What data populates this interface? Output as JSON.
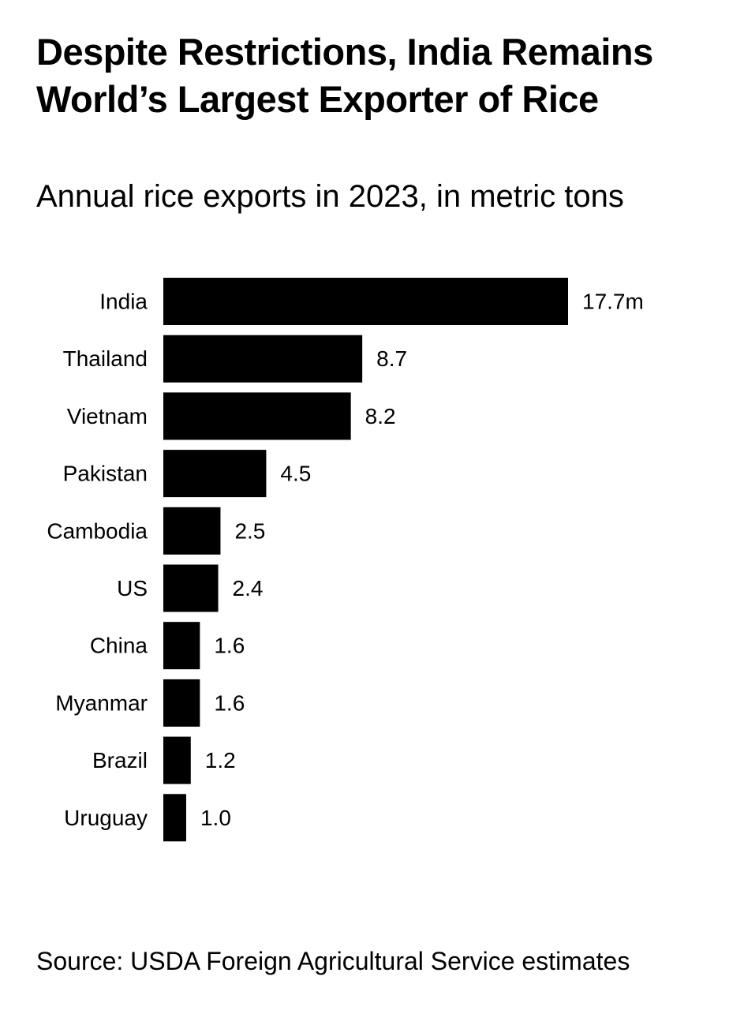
{
  "header": {
    "title": "Despite Restrictions, India Remains World’s Largest Exporter of Rice",
    "subtitle": "Annual rice exports in 2023, in metric tons"
  },
  "footer": {
    "source": "Source: USDA Foreign Agricultural Service estimates"
  },
  "colors": {
    "bar": "#000000",
    "text": "#000000",
    "background": "#ffffff"
  },
  "chart_data": {
    "type": "bar",
    "orientation": "horizontal",
    "title": "Despite Restrictions, India Remains World’s Largest Exporter of Rice",
    "subtitle": "Annual rice exports in 2023, in metric tons",
    "categories": [
      "India",
      "Thailand",
      "Vietnam",
      "Pakistan",
      "Cambodia",
      "US",
      "China",
      "Myanmar",
      "Brazil",
      "Uruguay"
    ],
    "values": [
      17.7,
      8.7,
      8.2,
      4.5,
      2.5,
      2.4,
      1.6,
      1.6,
      1.2,
      1.0
    ],
    "value_labels": [
      "17.7m",
      "8.7",
      "8.2",
      "4.5",
      "2.5",
      "2.4",
      "1.6",
      "1.6",
      "1.2",
      "1.0"
    ],
    "xlim": [
      0,
      17.7
    ],
    "grid": false,
    "legend": "none",
    "xlabel": "",
    "ylabel": ""
  }
}
